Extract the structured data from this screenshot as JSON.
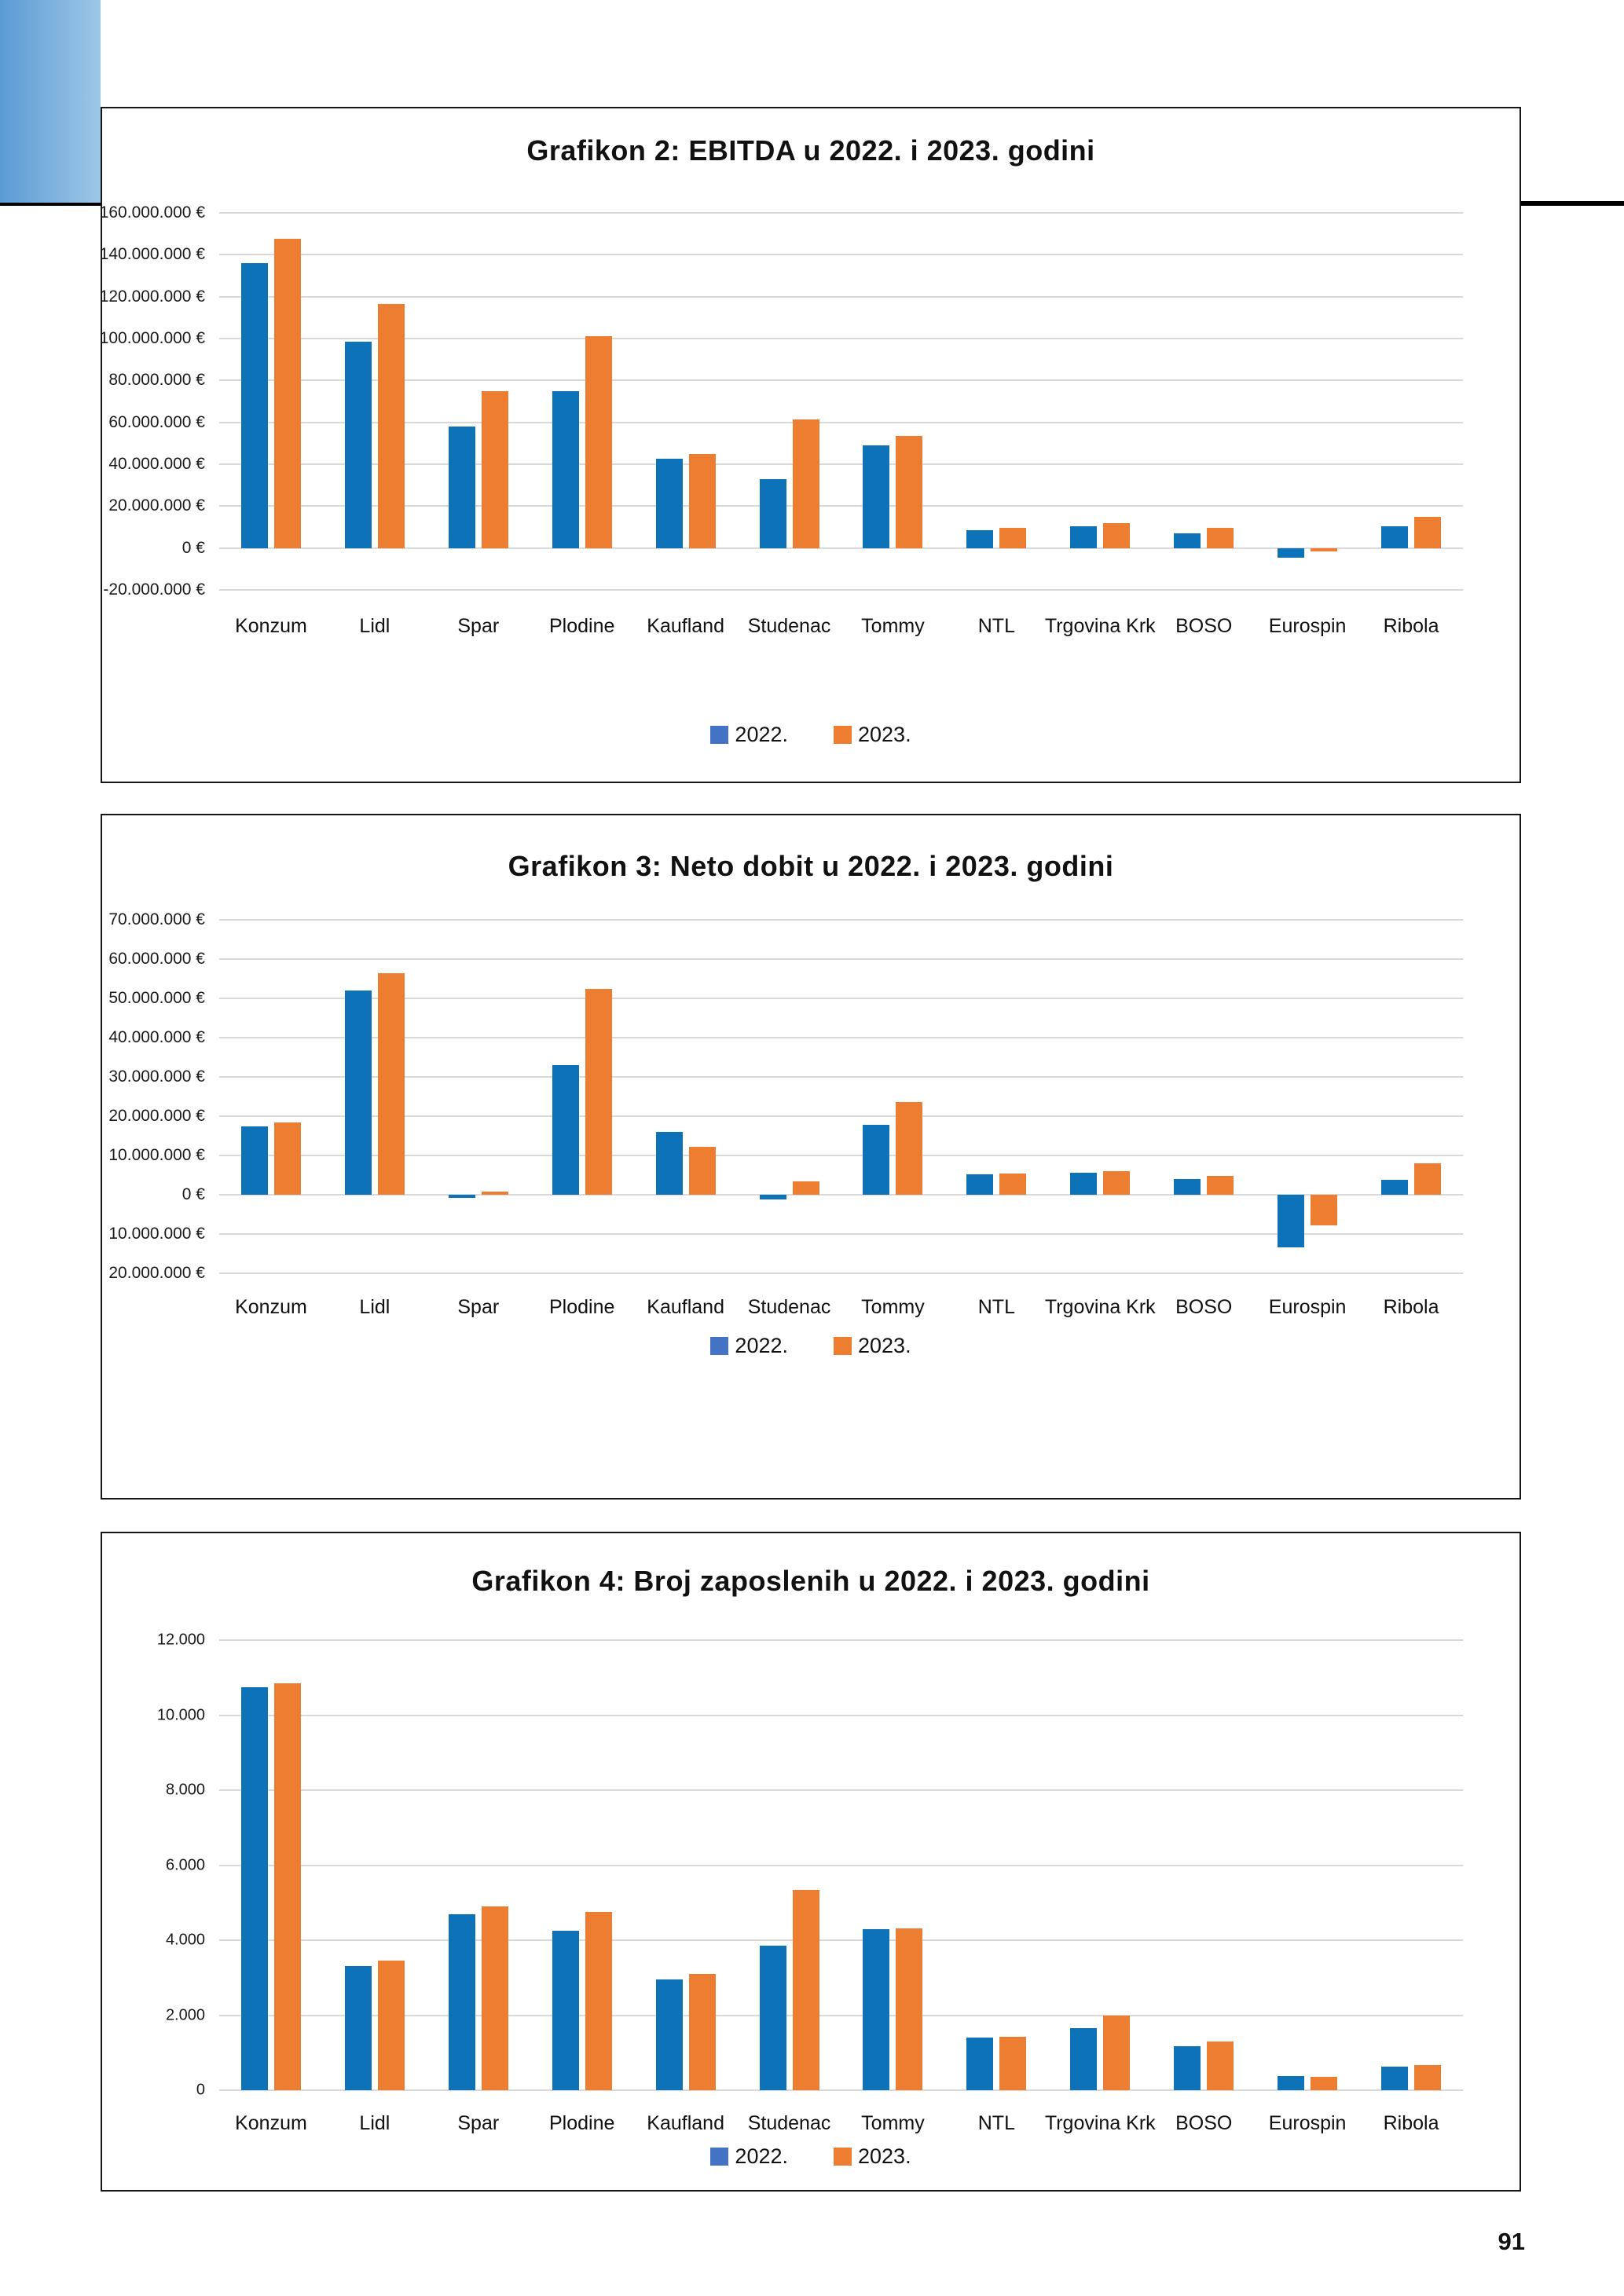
{
  "page": {
    "number": "91",
    "rule_color": "#000000",
    "corner_gradient": [
      "#5b9bd5",
      "#9dc7e6"
    ],
    "bar_blue": "#0e72b9",
    "bar_orange": "#ed7d31",
    "legend_blue": "#4472c4",
    "gridline_color": "#d9d9d9"
  },
  "chart_data": [
    {
      "type": "bar",
      "title": "Grafikon 2: EBITDA u 2022. i 2023. godini",
      "categories": [
        "Konzum",
        "Lidl",
        "Spar",
        "Plodine",
        "Kaufland",
        "Studenac",
        "Tommy",
        "NTL",
        "Trgovina Krk",
        "BOSO",
        "Eurospin",
        "Ribola"
      ],
      "series": [
        {
          "name": "2022.",
          "color": "#0e72b9",
          "legend_color": "#4472c4",
          "values": [
            136000000,
            98500000,
            58000000,
            75000000,
            42500000,
            33000000,
            49000000,
            8500000,
            10500000,
            7000000,
            -4500000,
            10500000
          ]
        },
        {
          "name": "2023.",
          "color": "#ed7d31",
          "legend_color": "#ed7d31",
          "values": [
            147500000,
            116500000,
            75000000,
            101000000,
            45000000,
            61500000,
            53500000,
            9500000,
            12000000,
            9500000,
            -1500000,
            15000000
          ]
        }
      ],
      "ylabel": "",
      "xlabel": "",
      "ylim": [
        -20000000,
        160000000
      ],
      "ytick_step": 20000000,
      "ytick_labels": [
        "160.000.000 €",
        "140.000.000 €",
        "120.000.000 €",
        "100.000.000 €",
        "80.000.000 €",
        "60.000.000 €",
        "40.000.000 €",
        "20.000.000 €",
        "0 €",
        "-20.000.000 €"
      ],
      "grid": "horizontal",
      "legend_position": "bottom-center"
    },
    {
      "type": "bar",
      "title": "Grafikon 3: Neto dobit u 2022. i 2023. godini",
      "categories": [
        "Konzum",
        "Lidl",
        "Spar",
        "Plodine",
        "Kaufland",
        "Studenac",
        "Tommy",
        "NTL",
        "Trgovina Krk",
        "BOSO",
        "Eurospin",
        "Ribola"
      ],
      "series": [
        {
          "name": "2022.",
          "color": "#0e72b9",
          "legend_color": "#4472c4",
          "values": [
            17500000,
            52000000,
            -800000,
            33000000,
            16000000,
            -1200000,
            17800000,
            5200000,
            5600000,
            4000000,
            -13300000,
            3900000
          ]
        },
        {
          "name": "2023.",
          "color": "#ed7d31",
          "legend_color": "#ed7d31",
          "values": [
            18500000,
            56500000,
            900000,
            52500000,
            12200000,
            3500000,
            23700000,
            5400000,
            6100000,
            4800000,
            -7800000,
            8000000
          ]
        }
      ],
      "ylabel": "",
      "xlabel": "",
      "ylim": [
        -20000000,
        70000000
      ],
      "ytick_step": 10000000,
      "ytick_labels": [
        "70.000.000 €",
        "60.000.000 €",
        "50.000.000 €",
        "40.000.000 €",
        "30.000.000 €",
        "20.000.000 €",
        "10.000.000 €",
        "0 €",
        "10.000.000 €",
        "20.000.000 €"
      ],
      "grid": "horizontal",
      "legend_position": "bottom-center"
    },
    {
      "type": "bar",
      "title": "Grafikon 4: Broj zaposlenih u 2022. i 2023. godini",
      "categories": [
        "Konzum",
        "Lidl",
        "Spar",
        "Plodine",
        "Kaufland",
        "Studenac",
        "Tommy",
        "NTL",
        "Trgovina Krk",
        "BOSO",
        "Eurospin",
        "Ribola"
      ],
      "series": [
        {
          "name": "2022.",
          "color": "#0e72b9",
          "legend_color": "#4472c4",
          "values": [
            10750,
            3300,
            4700,
            4250,
            2950,
            3850,
            4300,
            1400,
            1650,
            1180,
            380,
            630
          ]
        },
        {
          "name": "2023.",
          "color": "#ed7d31",
          "legend_color": "#ed7d31",
          "values": [
            10850,
            3450,
            4900,
            4750,
            3100,
            5350,
            4320,
            1430,
            2000,
            1290,
            360,
            660
          ]
        }
      ],
      "ylabel": "",
      "xlabel": "",
      "ylim": [
        0,
        12000
      ],
      "ytick_step": 2000,
      "ytick_labels": [
        "12.000",
        "10.000",
        "8.000",
        "6.000",
        "4.000",
        "2.000",
        "0"
      ],
      "grid": "horizontal",
      "legend_position": "bottom-center"
    }
  ]
}
